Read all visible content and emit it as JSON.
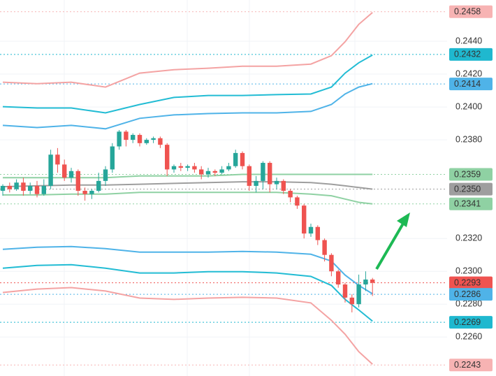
{
  "chart_data": {
    "type": "candlestick",
    "up_color": "#26a69a",
    "down_color": "#ef5350",
    "ylim": [
      0.22363,
      0.24651
    ],
    "yticks": [
      {
        "value": 0.226,
        "label": "0.2260"
      },
      {
        "value": 0.228,
        "label": "0.2280"
      },
      {
        "value": 0.23,
        "label": "0.2300"
      },
      {
        "value": 0.232,
        "label": "0.2320"
      },
      {
        "value": 0.238,
        "label": "0.2380"
      },
      {
        "value": 0.24,
        "label": "0.2400"
      },
      {
        "value": 0.242,
        "label": "0.2420"
      },
      {
        "value": 0.244,
        "label": "0.2440"
      }
    ],
    "grid": true,
    "open": [
      0.2349,
      0.2352,
      0.235,
      0.2354,
      0.2349,
      0.2352,
      0.2347,
      0.2352,
      0.2371,
      0.2365,
      0.2357,
      0.2361,
      0.2349,
      0.2347,
      0.2349,
      0.2355,
      0.2362,
      0.2376,
      0.2385,
      0.238,
      0.2383,
      0.2378,
      0.238,
      0.2381,
      0.2377,
      0.2362,
      0.2364,
      0.2363,
      0.2364,
      0.2362,
      0.2359,
      0.2361,
      0.236,
      0.2362,
      0.2364,
      0.2372,
      0.2364,
      0.2352,
      0.2355,
      0.2366,
      0.2353,
      0.2355,
      0.2349,
      0.2345,
      0.234,
      0.2323,
      0.2327,
      0.2319,
      0.231,
      0.23,
      0.2292,
      0.2284,
      0.228,
      0.2292,
      0.2295
    ],
    "high": [
      0.2353,
      0.2354,
      0.2356,
      0.2357,
      0.2354,
      0.2355,
      0.2356,
      0.2374,
      0.2375,
      0.2368,
      0.2363,
      0.2362,
      0.2351,
      0.235,
      0.236,
      0.2364,
      0.2378,
      0.2386,
      0.2386,
      0.2384,
      0.2384,
      0.2381,
      0.2382,
      0.2382,
      0.2378,
      0.2365,
      0.2366,
      0.2365,
      0.2366,
      0.2364,
      0.2363,
      0.2362,
      0.2364,
      0.2366,
      0.2374,
      0.2373,
      0.2365,
      0.2358,
      0.2367,
      0.2367,
      0.2357,
      0.2356,
      0.235,
      0.2346,
      0.2341,
      0.2329,
      0.2328,
      0.232,
      0.2311,
      0.2301,
      0.2293,
      0.2286,
      0.2298,
      0.23,
      0.2296
    ],
    "low": [
      0.2346,
      0.2348,
      0.2349,
      0.2346,
      0.2347,
      0.2345,
      0.2346,
      0.235,
      0.236,
      0.2355,
      0.2354,
      0.2346,
      0.2343,
      0.2344,
      0.2348,
      0.2352,
      0.236,
      0.2374,
      0.2376,
      0.2378,
      0.2376,
      0.2377,
      0.2378,
      0.2375,
      0.2358,
      0.236,
      0.2361,
      0.2361,
      0.236,
      0.2356,
      0.2357,
      0.2358,
      0.2359,
      0.2361,
      0.2363,
      0.2362,
      0.2349,
      0.2348,
      0.235,
      0.2348,
      0.235,
      0.2347,
      0.2342,
      0.2338,
      0.232,
      0.2321,
      0.2316,
      0.2306,
      0.2297,
      0.229,
      0.2281,
      0.2275,
      0.2278,
      0.2288,
      0.2285
    ],
    "close": [
      0.2352,
      0.235,
      0.2354,
      0.2349,
      0.2352,
      0.2347,
      0.2352,
      0.2371,
      0.2365,
      0.2357,
      0.2361,
      0.2349,
      0.2347,
      0.2349,
      0.2355,
      0.2362,
      0.2376,
      0.2385,
      0.238,
      0.2383,
      0.2378,
      0.238,
      0.2381,
      0.2377,
      0.2362,
      0.2364,
      0.2363,
      0.2364,
      0.2362,
      0.2359,
      0.2361,
      0.236,
      0.2362,
      0.2364,
      0.2372,
      0.2364,
      0.2352,
      0.2355,
      0.2366,
      0.2353,
      0.2355,
      0.2349,
      0.2345,
      0.234,
      0.2323,
      0.2327,
      0.2319,
      0.231,
      0.23,
      0.2292,
      0.2284,
      0.228,
      0.2292,
      0.2295,
      0.2293
    ],
    "series": [
      {
        "color": "#f4a3a3",
        "x": [
          0,
          5,
          10,
          15,
          20,
          25,
          30,
          35,
          40,
          45,
          48,
          50,
          52,
          54
        ],
        "values": [
          0.24151,
          0.24142,
          0.24151,
          0.24121,
          0.24206,
          0.24227,
          0.24236,
          0.24248,
          0.24248,
          0.24261,
          0.24312,
          0.24397,
          0.24503,
          0.24575
        ]
      },
      {
        "color": "#22bcd4",
        "x": [
          0,
          5,
          10,
          15,
          20,
          25,
          30,
          35,
          40,
          45,
          48,
          50,
          52,
          54
        ],
        "values": [
          0.24002,
          0.23994,
          0.23994,
          0.23964,
          0.24015,
          0.24058,
          0.2407,
          0.2407,
          0.24075,
          0.24079,
          0.24121,
          0.24206,
          0.24269,
          0.24316
        ]
      },
      {
        "color": "#4fb3e8",
        "x": [
          0,
          5,
          10,
          15,
          20,
          25,
          30,
          35,
          40,
          45,
          48,
          50,
          52,
          54
        ],
        "values": [
          0.23888,
          0.23875,
          0.23888,
          0.23867,
          0.23931,
          0.23952,
          0.2396,
          0.23964,
          0.23964,
          0.23973,
          0.24015,
          0.24079,
          0.24121,
          0.24142
        ]
      },
      {
        "color": "#8fd1a3",
        "x": [
          0,
          5,
          10,
          15,
          20,
          25,
          30,
          35,
          40,
          45,
          48,
          50,
          52,
          54
        ],
        "values": [
          0.2357,
          0.2357,
          0.2357,
          0.2357,
          0.2358,
          0.2358,
          0.2358,
          0.2359,
          0.2359,
          0.2359,
          0.2359,
          0.2359,
          0.2359,
          0.2359
        ]
      },
      {
        "color": "#9e9e9e",
        "x": [
          0,
          5,
          10,
          15,
          20,
          25,
          30,
          35,
          40,
          45,
          48,
          50,
          52,
          54
        ],
        "values": [
          0.23515,
          0.2352,
          0.23525,
          0.23525,
          0.2353,
          0.23535,
          0.2354,
          0.23545,
          0.23545,
          0.2354,
          0.2353,
          0.2352,
          0.2351,
          0.235
        ]
      },
      {
        "color": "#8fd1a3",
        "x": [
          0,
          5,
          10,
          15,
          20,
          25,
          30,
          35,
          40,
          45,
          48,
          50,
          52,
          54
        ],
        "values": [
          0.23465,
          0.23465,
          0.2347,
          0.2347,
          0.2348,
          0.2348,
          0.2348,
          0.2348,
          0.2348,
          0.2347,
          0.2346,
          0.2344,
          0.2342,
          0.2341
        ]
      },
      {
        "color": "#4fb3e8",
        "x": [
          0,
          5,
          10,
          15,
          20,
          25,
          30,
          35,
          40,
          45,
          48,
          50,
          52,
          54
        ],
        "values": [
          0.23134,
          0.23147,
          0.23151,
          0.23138,
          0.23117,
          0.23117,
          0.23117,
          0.23121,
          0.23117,
          0.23104,
          0.23062,
          0.22977,
          0.22914,
          0.22863
        ]
      },
      {
        "color": "#22bcd4",
        "x": [
          0,
          5,
          10,
          15,
          20,
          25,
          30,
          35,
          40,
          45,
          48,
          50,
          52,
          54
        ],
        "values": [
          0.23019,
          0.23036,
          0.2304,
          0.23019,
          0.2299,
          0.2299,
          0.22998,
          0.22998,
          0.2299,
          0.22969,
          0.22914,
          0.22829,
          0.22765,
          0.22697
        ]
      },
      {
        "color": "#f4a3a3",
        "x": [
          0,
          5,
          10,
          15,
          20,
          25,
          30,
          35,
          40,
          45,
          48,
          50,
          52,
          54
        ],
        "values": [
          0.22871,
          0.22892,
          0.22901,
          0.2288,
          0.22837,
          0.22829,
          0.22837,
          0.22842,
          0.22837,
          0.22808,
          0.22702,
          0.22617,
          0.22511,
          0.22435
        ]
      }
    ],
    "price_labels": [
      {
        "value": 0.2458,
        "label": "0.2458",
        "color": "#f7b3b3",
        "text_color": "#222222"
      },
      {
        "value": 0.2432,
        "label": "0.2432",
        "color": "#1fb8cf",
        "text_color": "#111111"
      },
      {
        "value": 0.2414,
        "label": "0.2414",
        "color": "#4fb3e8",
        "text_color": "#111111"
      },
      {
        "value": 0.2359,
        "label": "0.2359",
        "color": "#8fd1a3",
        "text_color": "#111111"
      },
      {
        "value": 0.235,
        "label": "0.2350",
        "color": "#9e9e9e",
        "text_color": "#111111"
      },
      {
        "value": 0.2341,
        "label": "0.2341",
        "color": "#8fd1a3",
        "text_color": "#111111"
      },
      {
        "value": 0.2293,
        "label": "0.2293",
        "color": "#ef5350",
        "text_color": "#ffffff"
      },
      {
        "value": 0.2286,
        "label": "0.2286",
        "color": "#4fb3e8",
        "text_color": "#111111"
      },
      {
        "value": 0.2269,
        "label": "0.2269",
        "color": "#1fb8cf",
        "text_color": "#111111"
      },
      {
        "value": 0.2243,
        "label": "0.2243",
        "color": "#f7b3b3",
        "text_color": "#222222"
      }
    ]
  }
}
